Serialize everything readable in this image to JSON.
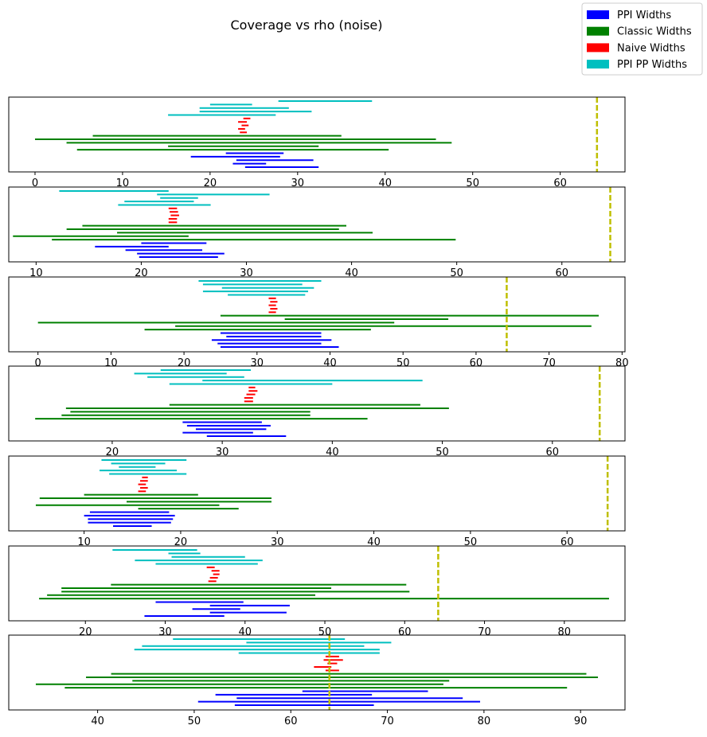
{
  "title": "Coverage vs rho (noise)",
  "legend": {
    "position": "top-right",
    "entries": [
      {
        "label": "PPI Widths",
        "color": "#0000ff"
      },
      {
        "label": "Classic Widths",
        "color": "#008000"
      },
      {
        "label": "Naive Widths",
        "color": "#ff0000"
      },
      {
        "label": "PPI PP Widths",
        "color": "#00bfbf"
      }
    ]
  },
  "reference_line_color": "#bfbf00",
  "chart_data": [
    {
      "type": "interval",
      "xlim": [
        -3,
        67.4
      ],
      "xticks": [
        0,
        10,
        20,
        30,
        40,
        50,
        60
      ],
      "reference": 64.2,
      "series": {
        "ppi_pp": [
          [
            27.8,
            38.5
          ],
          [
            20.0,
            24.8
          ],
          [
            18.8,
            29.0
          ],
          [
            18.8,
            31.6
          ],
          [
            15.2,
            27.5
          ]
        ],
        "naive": [
          [
            23.8,
            24.6
          ],
          [
            23.2,
            24.2
          ],
          [
            23.6,
            24.4
          ],
          [
            23.2,
            24.0
          ],
          [
            23.4,
            24.2
          ]
        ],
        "classic": [
          [
            6.6,
            35.0
          ],
          [
            0.0,
            45.8
          ],
          [
            3.6,
            47.6
          ],
          [
            15.2,
            32.4
          ],
          [
            4.8,
            40.4
          ]
        ],
        "ppi": [
          [
            21.8,
            28.4
          ],
          [
            17.8,
            28.0
          ],
          [
            23.0,
            31.8
          ],
          [
            22.6,
            26.4
          ],
          [
            24.0,
            32.4
          ]
        ]
      }
    },
    {
      "type": "interval",
      "xlim": [
        7.4,
        66.0
      ],
      "xticks": [
        10,
        20,
        30,
        40,
        50,
        60
      ],
      "reference": 64.6,
      "series": {
        "ppi_pp": [
          [
            12.2,
            22.6
          ],
          [
            21.5,
            32.2
          ],
          [
            21.8,
            25.4
          ],
          [
            18.4,
            25.0
          ],
          [
            17.8,
            26.6
          ]
        ],
        "naive": [
          [
            22.6,
            23.4
          ],
          [
            22.7,
            23.5
          ],
          [
            22.8,
            23.6
          ],
          [
            22.6,
            23.4
          ],
          [
            22.6,
            23.4
          ]
        ],
        "classic": [
          [
            14.4,
            39.5
          ],
          [
            12.9,
            38.8
          ],
          [
            17.7,
            42.0
          ],
          [
            7.8,
            24.5
          ],
          [
            11.5,
            49.9
          ]
        ],
        "ppi": [
          [
            20.0,
            26.2
          ],
          [
            15.6,
            22.6
          ],
          [
            18.5,
            25.8
          ],
          [
            19.6,
            27.9
          ],
          [
            19.8,
            27.3
          ]
        ]
      }
    },
    {
      "type": "interval",
      "xlim": [
        -4,
        80.4
      ],
      "xticks": [
        0,
        10,
        20,
        30,
        40,
        50,
        60,
        70,
        80
      ],
      "reference": 64.2,
      "series": {
        "ppi_pp": [
          [
            22.0,
            38.8
          ],
          [
            22.6,
            36.2
          ],
          [
            25.2,
            37.8
          ],
          [
            22.6,
            37.0
          ],
          [
            26.0,
            36.6
          ]
        ],
        "naive": [
          [
            31.6,
            32.6
          ],
          [
            31.8,
            32.8
          ],
          [
            31.6,
            32.6
          ],
          [
            31.8,
            32.8
          ],
          [
            31.6,
            32.6
          ]
        ],
        "classic": [
          [
            25.0,
            76.8
          ],
          [
            33.8,
            56.2
          ],
          [
            0.0,
            48.8
          ],
          [
            18.8,
            75.8
          ],
          [
            14.6,
            45.6
          ]
        ],
        "ppi": [
          [
            25.0,
            38.8
          ],
          [
            25.8,
            38.8
          ],
          [
            23.8,
            40.2
          ],
          [
            24.6,
            38.8
          ],
          [
            25.0,
            41.2
          ]
        ]
      }
    },
    {
      "type": "interval",
      "xlim": [
        10.6,
        66.6
      ],
      "xticks": [
        20,
        30,
        40,
        50,
        60
      ],
      "reference": 64.3,
      "series": {
        "ppi_pp": [
          [
            24.4,
            32.6
          ],
          [
            22.0,
            30.4
          ],
          [
            23.2,
            32.0
          ],
          [
            28.2,
            48.2
          ],
          [
            25.2,
            40.0
          ]
        ],
        "naive": [
          [
            32.4,
            33.0
          ],
          [
            32.4,
            33.2
          ],
          [
            32.2,
            33.0
          ],
          [
            32.0,
            32.8
          ],
          [
            32.0,
            32.8
          ]
        ],
        "classic": [
          [
            25.2,
            48.0
          ],
          [
            15.8,
            50.6
          ],
          [
            16.2,
            38.0
          ],
          [
            15.4,
            38.0
          ],
          [
            13.0,
            43.2
          ]
        ],
        "ppi": [
          [
            26.4,
            33.6
          ],
          [
            26.8,
            34.4
          ],
          [
            27.6,
            34.0
          ],
          [
            26.4,
            32.8
          ],
          [
            28.6,
            35.8
          ]
        ]
      }
    },
    {
      "type": "interval",
      "xlim": [
        2.2,
        66.0
      ],
      "xticks": [
        10,
        20,
        30,
        40,
        50,
        60
      ],
      "reference": 64.2,
      "series": {
        "ppi_pp": [
          [
            11.8,
            20.6
          ],
          [
            12.8,
            18.4
          ],
          [
            13.6,
            17.4
          ],
          [
            11.6,
            19.6
          ],
          [
            12.6,
            20.6
          ]
        ],
        "naive": [
          [
            16.0,
            16.6
          ],
          [
            15.8,
            16.6
          ],
          [
            15.6,
            16.4
          ],
          [
            15.8,
            16.6
          ],
          [
            15.6,
            16.4
          ]
        ],
        "classic": [
          [
            10.0,
            21.8
          ],
          [
            5.4,
            29.4
          ],
          [
            14.4,
            29.4
          ],
          [
            5.0,
            24.0
          ],
          [
            15.6,
            26.0
          ]
        ],
        "ppi": [
          [
            10.6,
            18.8
          ],
          [
            10.0,
            19.4
          ],
          [
            10.4,
            19.2
          ],
          [
            10.4,
            19.0
          ],
          [
            13.0,
            17.0
          ]
        ]
      }
    },
    {
      "type": "interval",
      "xlim": [
        10.4,
        87.6
      ],
      "xticks": [
        20,
        30,
        40,
        50,
        60,
        70,
        80
      ],
      "reference": 64.2,
      "series": {
        "ppi_pp": [
          [
            23.4,
            34.0
          ],
          [
            30.4,
            34.4
          ],
          [
            30.8,
            40.0
          ],
          [
            26.2,
            42.2
          ],
          [
            28.8,
            41.6
          ]
        ],
        "naive": [
          [
            35.2,
            36.2
          ],
          [
            35.8,
            36.8
          ],
          [
            36.0,
            36.8
          ],
          [
            35.6,
            36.6
          ],
          [
            35.4,
            36.4
          ]
        ],
        "classic": [
          [
            23.2,
            60.2
          ],
          [
            17.0,
            50.8
          ],
          [
            17.0,
            60.6
          ],
          [
            15.2,
            48.8
          ],
          [
            14.2,
            85.6
          ]
        ],
        "ppi": [
          [
            28.8,
            39.8
          ],
          [
            35.6,
            45.6
          ],
          [
            33.4,
            39.4
          ],
          [
            35.6,
            45.2
          ],
          [
            27.4,
            37.4
          ]
        ]
      }
    },
    {
      "type": "interval",
      "xlim": [
        30.8,
        94.6
      ],
      "xticks": [
        40,
        50,
        60,
        70,
        80,
        90
      ],
      "reference": 64.0,
      "series": {
        "ppi_pp": [
          [
            47.8,
            65.6
          ],
          [
            55.4,
            70.4
          ],
          [
            44.6,
            67.6
          ],
          [
            43.8,
            69.2
          ],
          [
            54.6,
            69.2
          ]
        ],
        "naive": [
          [
            63.6,
            65.0
          ],
          [
            63.4,
            65.4
          ],
          [
            63.8,
            64.8
          ],
          [
            62.4,
            64.2
          ],
          [
            63.6,
            65.0
          ]
        ],
        "classic": [
          [
            41.4,
            90.6
          ],
          [
            38.8,
            91.8
          ],
          [
            43.6,
            76.4
          ],
          [
            33.6,
            75.8
          ],
          [
            36.6,
            88.6
          ]
        ],
        "ppi": [
          [
            61.2,
            74.2
          ],
          [
            52.2,
            68.4
          ],
          [
            54.4,
            77.8
          ],
          [
            50.4,
            79.6
          ],
          [
            54.2,
            68.6
          ]
        ]
      }
    }
  ]
}
